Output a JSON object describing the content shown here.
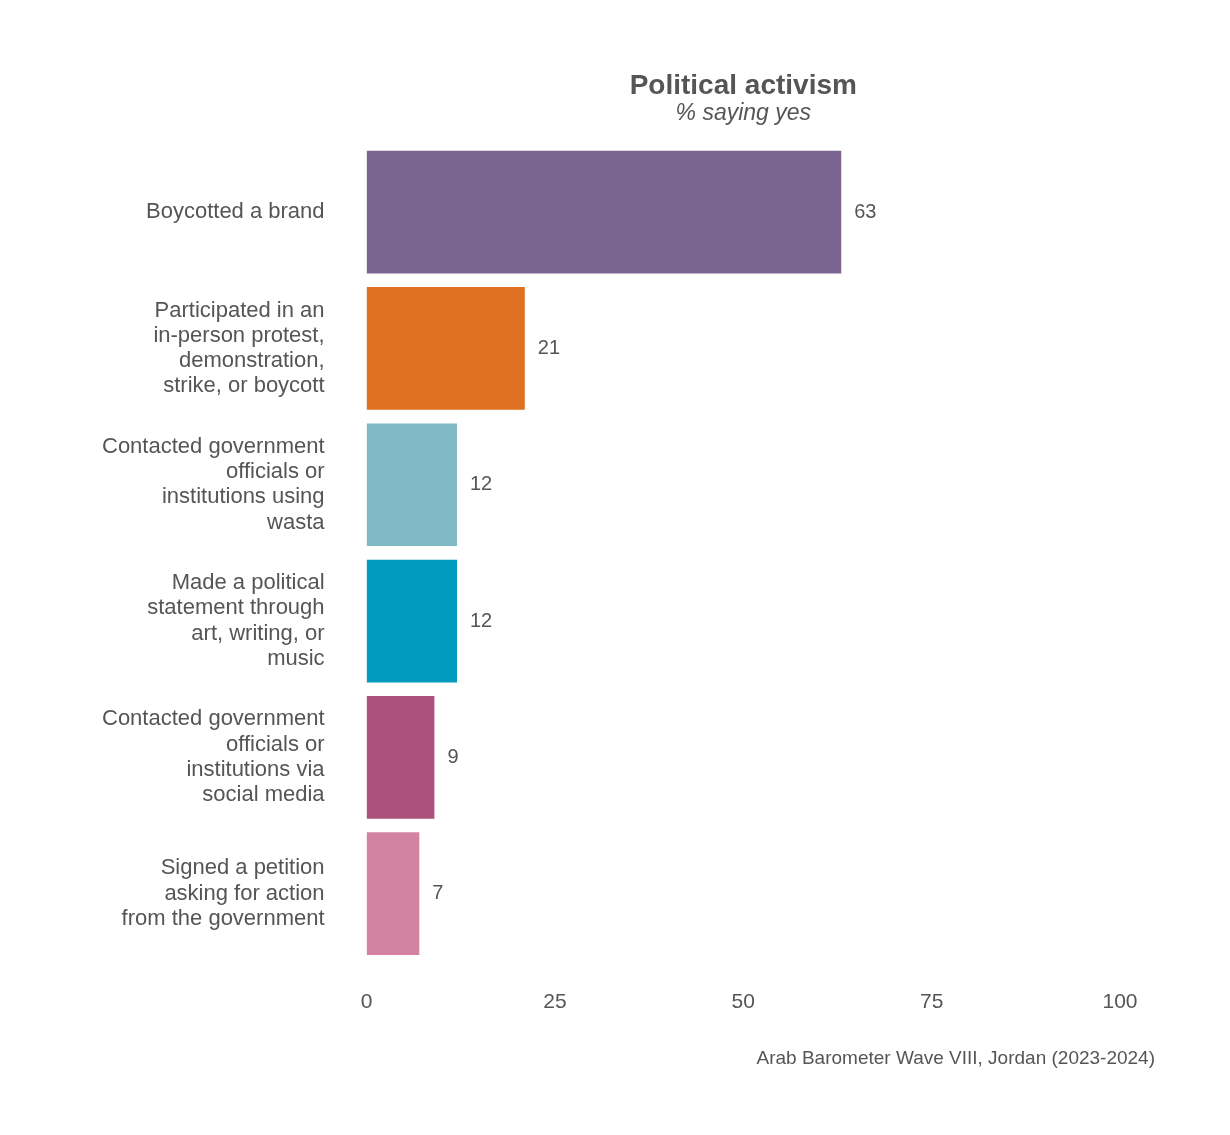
{
  "chart_data": {
    "type": "bar",
    "orientation": "horizontal",
    "title": "Political activism",
    "subtitle": "% saying yes",
    "source": "Arab Barometer Wave VIII, Jordan (2023-2024)",
    "categories": [
      "Boycotted a brand",
      "Participated in an in-person protest, demonstration, strike, or boycott",
      "Contacted government officials or institutions using wasta",
      "Made a political statement through art, writing, or music",
      "Contacted government officials or institutions via social media",
      "Signed a petition asking for action from the government"
    ],
    "values": [
      63,
      21,
      12,
      12,
      9,
      7
    ],
    "colors": [
      "#7a6591",
      "#e07022",
      "#80bac6",
      "#009bbf",
      "#ac507c",
      "#d283a2"
    ],
    "xlim": [
      0,
      100
    ],
    "xticks": [
      0,
      25,
      50,
      75,
      100
    ],
    "grid": false,
    "data_labels": true
  }
}
